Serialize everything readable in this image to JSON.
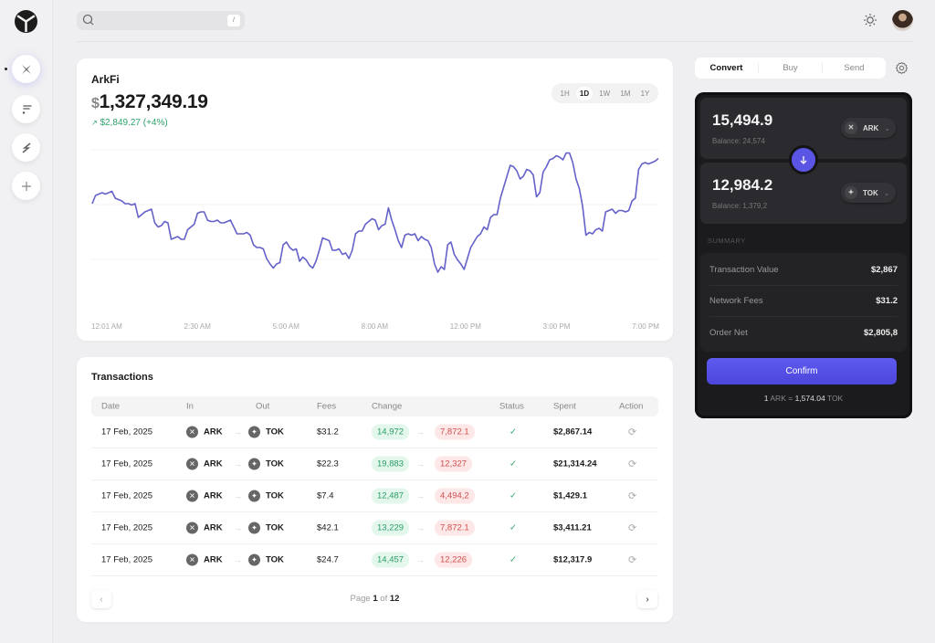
{
  "sidebar": {
    "logo": "arkfi-logo",
    "items": [
      {
        "name": "sidebar-item-ark",
        "icon": "ark-x-icon",
        "active": true
      },
      {
        "name": "sidebar-item-f",
        "icon": "f-token-icon",
        "active": false
      },
      {
        "name": "sidebar-item-bolt",
        "icon": "bolt-icon",
        "active": false
      },
      {
        "name": "sidebar-item-add",
        "icon": "plus-icon",
        "active": false
      }
    ]
  },
  "topbar": {
    "search_placeholder": "",
    "search_shortcut": "/",
    "theme_icon": "sun-icon",
    "avatar": "user-avatar"
  },
  "chart_card": {
    "title": "ArkFi",
    "currency": "$",
    "value": "1,327,349.19",
    "change": "$2,849.27 (+4%)",
    "change_icon": "↗",
    "ranges": [
      "1H",
      "1D",
      "1W",
      "1M",
      "1Y"
    ],
    "selected_range": "1D"
  },
  "chart_data": {
    "type": "line",
    "title": "ArkFi",
    "xlabel": "",
    "ylabel": "",
    "x_ticks": [
      "12:01 AM",
      "2:30 AM",
      "5:00 AM",
      "8:00 AM",
      "12:00 PM",
      "3:00 PM",
      "7:00 PM"
    ],
    "grid": true,
    "color": "#6461c9",
    "series": [
      {
        "name": "ArkFi value (relative, 0=bottom,100=top)",
        "values": [
          62,
          68,
          69,
          70,
          69,
          70,
          71,
          66,
          65,
          64,
          62,
          62,
          61,
          62,
          52,
          54,
          56,
          57,
          58,
          48,
          45,
          46,
          49,
          48,
          36,
          37,
          38,
          36,
          36,
          43,
          45,
          47,
          55,
          56,
          56,
          50,
          49,
          49,
          50,
          48,
          48,
          49,
          50,
          45,
          40,
          40,
          40,
          41,
          39,
          32,
          30,
          30,
          29,
          22,
          18,
          15,
          18,
          19,
          32,
          34,
          30,
          28,
          29,
          20,
          23,
          21,
          17,
          15,
          20,
          28,
          37,
          36,
          35,
          28,
          28,
          29,
          25,
          26,
          22,
          28,
          40,
          42,
          42,
          47,
          49,
          51,
          50,
          43,
          46,
          47,
          59,
          50,
          43,
          35,
          30,
          39,
          40,
          39,
          40,
          35,
          38,
          36,
          35,
          30,
          18,
          12,
          16,
          14,
          32,
          34,
          25,
          21,
          18,
          14,
          22,
          30,
          34,
          38,
          40,
          45,
          43,
          52,
          54,
          54,
          66,
          74,
          82,
          90,
          89,
          86,
          80,
          82,
          87,
          86,
          83,
          67,
          70,
          85,
          89,
          94,
          95,
          97,
          96,
          94,
          99,
          99,
          92,
          80,
          73,
          60,
          39,
          41,
          40,
          43,
          44,
          42,
          56,
          57,
          58,
          55,
          57,
          57,
          56,
          57,
          64,
          66,
          87,
          91,
          92,
          91,
          92,
          93,
          95
        ]
      }
    ]
  },
  "transactions": {
    "title": "Transactions",
    "columns": [
      "Date",
      "In",
      "Out",
      "Fees",
      "Change",
      "Status",
      "Spent",
      "Action"
    ],
    "rows": [
      {
        "date": "17 Feb, 2025",
        "in": "ARK",
        "out": "TOK",
        "fees": "$31.2",
        "change_from": "14,972",
        "change_to": "7,872.1",
        "status": "✓",
        "spent": "$2,867.14"
      },
      {
        "date": "17 Feb, 2025",
        "in": "ARK",
        "out": "TOK",
        "fees": "$22.3",
        "change_from": "19,883",
        "change_to": "12,327",
        "status": "✓",
        "spent": "$21,314.24"
      },
      {
        "date": "17 Feb, 2025",
        "in": "ARK",
        "out": "TOK",
        "fees": "$7.4",
        "change_from": "12,487",
        "change_to": "4,494,2",
        "status": "✓",
        "spent": "$1,429.1"
      },
      {
        "date": "17 Feb, 2025",
        "in": "ARK",
        "out": "TOK",
        "fees": "$42.1",
        "change_from": "13,229",
        "change_to": "7,872.1",
        "status": "✓",
        "spent": "$3,411.21"
      },
      {
        "date": "17 Feb, 2025",
        "in": "ARK",
        "out": "TOK",
        "fees": "$24.7",
        "change_from": "14,457",
        "change_to": "12,226",
        "status": "✓",
        "spent": "$12,317.9"
      }
    ],
    "pagination": {
      "prefix": "Page",
      "current": "1",
      "of": "of",
      "total": "12",
      "prev": "‹",
      "next": "›"
    }
  },
  "convert_panel": {
    "tabs": [
      "Convert",
      "Buy",
      "Send"
    ],
    "selected_tab": "Convert",
    "from": {
      "amount": "15,494.9",
      "balance": "Balance: 24,574",
      "token": "ARK"
    },
    "to": {
      "amount": "12,984.2",
      "balance": "Balance: 1,379,2",
      "token": "TOK"
    },
    "summary_label": "SUMMARY",
    "summary": [
      {
        "label": "Transaction Value",
        "value": "$2,867"
      },
      {
        "label": "Network Fees",
        "value": "$31.2"
      },
      {
        "label": "Order Net",
        "value": "$2,805,8"
      }
    ],
    "confirm_label": "Confirm",
    "rate": {
      "lhs_num": "1",
      "lhs_tok": "ARK",
      "eq": "=",
      "rhs_num": "1,574.04",
      "rhs_tok": "TOK"
    }
  }
}
